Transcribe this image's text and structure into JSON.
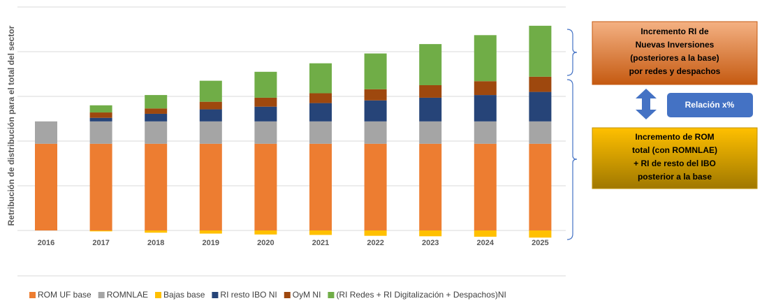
{
  "chart_data": {
    "type": "stacked_bar",
    "y_label": "Retribución de distribución para el total del sector",
    "categories": [
      "2016",
      "2017",
      "2018",
      "2019",
      "2020",
      "2021",
      "2022",
      "2023",
      "2024",
      "2025"
    ],
    "series": [
      {
        "name": "ROM UF base",
        "color": "#ed7d31",
        "values": [
          1.94,
          1.94,
          1.94,
          1.94,
          1.94,
          1.94,
          1.94,
          1.94,
          1.94,
          1.94
        ]
      },
      {
        "name": "ROMNLAE",
        "color": "#a5a5a5",
        "values": [
          0.5,
          0.5,
          0.5,
          0.5,
          0.5,
          0.5,
          0.5,
          0.5,
          0.5,
          0.5
        ]
      },
      {
        "name": "Bajas base",
        "color": "#ffc000",
        "values": [
          0,
          -0.02,
          -0.05,
          -0.07,
          -0.09,
          -0.1,
          -0.12,
          -0.13,
          -0.14,
          -0.16
        ]
      },
      {
        "name": "RI resto IBO NI",
        "color": "#264478",
        "values": [
          0,
          0.08,
          0.17,
          0.27,
          0.33,
          0.41,
          0.47,
          0.53,
          0.59,
          0.66
        ]
      },
      {
        "name": "OyM NI",
        "color": "#9e480e",
        "values": [
          0,
          0.12,
          0.12,
          0.17,
          0.2,
          0.22,
          0.25,
          0.28,
          0.31,
          0.34
        ]
      },
      {
        "name": "(RI Redes + RI Digitalización + Despachos)NI",
        "color": "#70ad47",
        "values": [
          0,
          0.16,
          0.3,
          0.47,
          0.58,
          0.67,
          0.8,
          0.92,
          1.03,
          1.14
        ]
      }
    ],
    "ylim": [
      -0.25,
      5
    ],
    "yticks": [
      0,
      1,
      2,
      3,
      4,
      5
    ],
    "grid": true,
    "annotations": {
      "top_box": [
        "Incremento RI de",
        "Nuevas Inversiones",
        "(posteriores a la base)",
        "por redes y despachos"
      ],
      "relation": "Relación x%",
      "bottom_box": [
        "Incremento de ROM",
        "total (con ROMNLAE)",
        "+ RI de resto del IBO",
        "posterior a la base"
      ]
    }
  }
}
